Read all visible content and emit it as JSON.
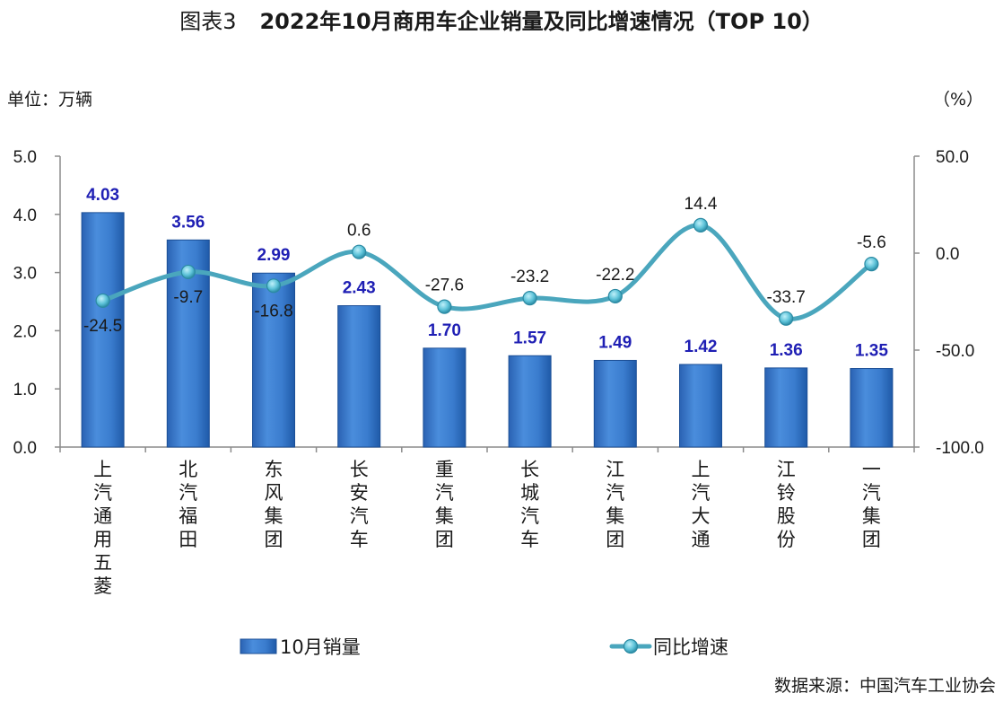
{
  "title_prefix": "图表3",
  "title_main": "2022年10月商用车企业销量及同比增速情况（TOP 10）",
  "unit_left": "单位：万辆",
  "unit_right": "（%）",
  "source": "数据来源：中国汽车工业协会",
  "colors": {
    "bar": "#3d7fd0",
    "bar_dark": "#1c4f96",
    "line": "#4aa6bd",
    "marker": "#5cc2d8",
    "bar_label": "#1f1fb4"
  },
  "chart_data": {
    "type": "bar+line",
    "categories": [
      "上汽通用五菱",
      "北汽福田",
      "东风集团",
      "长安汽车",
      "重汽集团",
      "长城汽车",
      "江汽集团",
      "上汽大通",
      "江铃股份",
      "一汽集团"
    ],
    "series": [
      {
        "name": "10月销量",
        "type": "bar",
        "axis": "left",
        "values": [
          4.03,
          3.56,
          2.99,
          2.43,
          1.7,
          1.57,
          1.49,
          1.42,
          1.36,
          1.35
        ],
        "labels": [
          "4.03",
          "3.56",
          "2.99",
          "2.43",
          "1.70",
          "1.57",
          "1.49",
          "1.42",
          "1.36",
          "1.35"
        ]
      },
      {
        "name": "同比增速",
        "type": "line",
        "axis": "right",
        "values": [
          -24.5,
          -9.7,
          -16.8,
          0.6,
          -27.6,
          -23.2,
          -22.2,
          14.4,
          -33.7,
          -5.6
        ],
        "labels": [
          "-24.5",
          "-9.7",
          "-16.8",
          "0.6",
          "-27.6",
          "-23.2",
          "-22.2",
          "14.4",
          "-33.7",
          "-5.6"
        ]
      }
    ],
    "y_left": {
      "range": [
        0,
        5
      ],
      "ticks": [
        "0.0",
        "1.0",
        "2.0",
        "3.0",
        "4.0",
        "5.0"
      ]
    },
    "y_right": {
      "range": [
        -100,
        50
      ],
      "ticks": [
        "-100.0",
        "-50.0",
        "0.0",
        "50.0"
      ]
    },
    "legend_position": "bottom",
    "grid": false
  }
}
